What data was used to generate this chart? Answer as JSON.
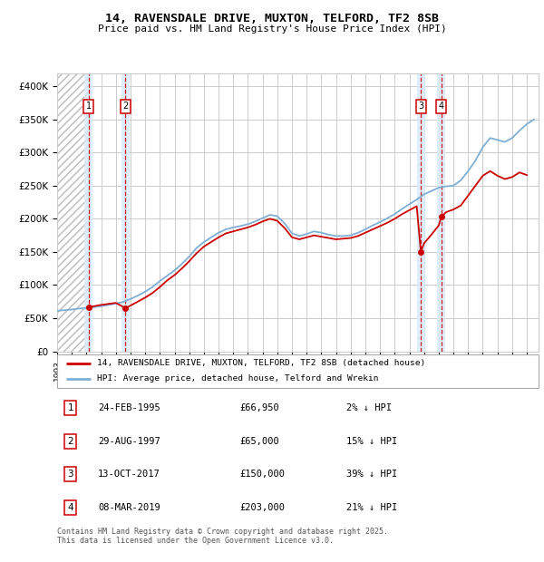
{
  "title": "14, RAVENSDALE DRIVE, MUXTON, TELFORD, TF2 8SB",
  "subtitle": "Price paid vs. HM Land Registry's House Price Index (HPI)",
  "ylabel_ticks": [
    "£0",
    "£50K",
    "£100K",
    "£150K",
    "£200K",
    "£250K",
    "£300K",
    "£350K",
    "£400K"
  ],
  "ytick_values": [
    0,
    50000,
    100000,
    150000,
    200000,
    250000,
    300000,
    350000,
    400000
  ],
  "ylim": [
    0,
    420000
  ],
  "xlim_start": 1993.0,
  "xlim_end": 2025.8,
  "sales": [
    {
      "num": 1,
      "date_num": 1995.15,
      "price": 66950,
      "label": "24-FEB-1995",
      "price_str": "£66,950",
      "hpi_diff": "2% ↓ HPI"
    },
    {
      "num": 2,
      "date_num": 1997.66,
      "price": 65000,
      "label": "29-AUG-1997",
      "price_str": "£65,000",
      "hpi_diff": "15% ↓ HPI"
    },
    {
      "num": 3,
      "date_num": 2017.78,
      "price": 150000,
      "label": "13-OCT-2017",
      "price_str": "£150,000",
      "hpi_diff": "39% ↓ HPI"
    },
    {
      "num": 4,
      "date_num": 2019.18,
      "price": 203000,
      "label": "08-MAR-2019",
      "price_str": "£203,000",
      "hpi_diff": "21% ↓ HPI"
    }
  ],
  "legend_line1": "14, RAVENSDALE DRIVE, MUXTON, TELFORD, TF2 8SB (detached house)",
  "legend_line2": "HPI: Average price, detached house, Telford and Wrekin",
  "footnote": "Contains HM Land Registry data © Crown copyright and database right 2025.\nThis data is licensed under the Open Government Licence v3.0.",
  "hpi_color": "#7fafd4",
  "price_color": "#cc0000",
  "bg_color": "#ffffff",
  "grid_color": "#cccccc",
  "hatch_color": "#bbbbbb",
  "shade_color": "#d8eaf8",
  "hpi_data": [
    [
      1993.0,
      61000
    ],
    [
      1993.5,
      62000
    ],
    [
      1994.0,
      63000
    ],
    [
      1994.5,
      64500
    ],
    [
      1995.0,
      65500
    ],
    [
      1995.5,
      66500
    ],
    [
      1996.0,
      68000
    ],
    [
      1996.5,
      70000
    ],
    [
      1997.0,
      72000
    ],
    [
      1997.5,
      74500
    ],
    [
      1998.0,
      79000
    ],
    [
      1998.5,
      84000
    ],
    [
      1999.0,
      90000
    ],
    [
      1999.5,
      97000
    ],
    [
      2000.0,
      106000
    ],
    [
      2000.5,
      114000
    ],
    [
      2001.0,
      122000
    ],
    [
      2001.5,
      132000
    ],
    [
      2002.0,
      143000
    ],
    [
      2002.5,
      156000
    ],
    [
      2003.0,
      165000
    ],
    [
      2003.5,
      172000
    ],
    [
      2004.0,
      179000
    ],
    [
      2004.5,
      184000
    ],
    [
      2005.0,
      187000
    ],
    [
      2005.5,
      189000
    ],
    [
      2006.0,
      192000
    ],
    [
      2006.5,
      196000
    ],
    [
      2007.0,
      201000
    ],
    [
      2007.5,
      206000
    ],
    [
      2008.0,
      204000
    ],
    [
      2008.5,
      193000
    ],
    [
      2009.0,
      178000
    ],
    [
      2009.5,
      174000
    ],
    [
      2010.0,
      177000
    ],
    [
      2010.5,
      181000
    ],
    [
      2011.0,
      179000
    ],
    [
      2011.5,
      176000
    ],
    [
      2012.0,
      174000
    ],
    [
      2012.5,
      174000
    ],
    [
      2013.0,
      175000
    ],
    [
      2013.5,
      179000
    ],
    [
      2014.0,
      184000
    ],
    [
      2014.5,
      190000
    ],
    [
      2015.0,
      195000
    ],
    [
      2015.5,
      201000
    ],
    [
      2016.0,
      207000
    ],
    [
      2016.5,
      215000
    ],
    [
      2017.0,
      222000
    ],
    [
      2017.5,
      229000
    ],
    [
      2018.0,
      237000
    ],
    [
      2018.5,
      242000
    ],
    [
      2019.0,
      247000
    ],
    [
      2019.5,
      249000
    ],
    [
      2020.0,
      250000
    ],
    [
      2020.5,
      258000
    ],
    [
      2021.0,
      272000
    ],
    [
      2021.5,
      288000
    ],
    [
      2022.0,
      308000
    ],
    [
      2022.5,
      322000
    ],
    [
      2023.0,
      319000
    ],
    [
      2023.5,
      316000
    ],
    [
      2024.0,
      322000
    ],
    [
      2024.5,
      333000
    ],
    [
      2025.0,
      343000
    ],
    [
      2025.5,
      350000
    ]
  ],
  "price_data": [
    [
      1995.15,
      66950
    ],
    [
      1995.5,
      68000
    ],
    [
      1996.0,
      70000
    ],
    [
      1996.5,
      71500
    ],
    [
      1997.0,
      73000
    ],
    [
      1997.66,
      65000
    ],
    [
      1998.0,
      69000
    ],
    [
      1998.5,
      75000
    ],
    [
      1999.0,
      81000
    ],
    [
      1999.5,
      88000
    ],
    [
      2000.0,
      97000
    ],
    [
      2000.5,
      107000
    ],
    [
      2001.0,
      115000
    ],
    [
      2001.5,
      125000
    ],
    [
      2002.0,
      136000
    ],
    [
      2002.5,
      148000
    ],
    [
      2003.0,
      158000
    ],
    [
      2003.5,
      165000
    ],
    [
      2004.0,
      172000
    ],
    [
      2004.5,
      178000
    ],
    [
      2005.0,
      181000
    ],
    [
      2005.5,
      184000
    ],
    [
      2006.0,
      187000
    ],
    [
      2006.5,
      191000
    ],
    [
      2007.0,
      196000
    ],
    [
      2007.5,
      200000
    ],
    [
      2008.0,
      197000
    ],
    [
      2008.5,
      186000
    ],
    [
      2009.0,
      172000
    ],
    [
      2009.5,
      169000
    ],
    [
      2010.0,
      172000
    ],
    [
      2010.5,
      175000
    ],
    [
      2011.0,
      173000
    ],
    [
      2011.5,
      171000
    ],
    [
      2012.0,
      169000
    ],
    [
      2012.5,
      170000
    ],
    [
      2013.0,
      171000
    ],
    [
      2013.5,
      174000
    ],
    [
      2014.0,
      179000
    ],
    [
      2014.5,
      184000
    ],
    [
      2015.0,
      189000
    ],
    [
      2015.5,
      194000
    ],
    [
      2016.0,
      200000
    ],
    [
      2016.5,
      207000
    ],
    [
      2017.0,
      213000
    ],
    [
      2017.5,
      219000
    ],
    [
      2017.78,
      150000
    ],
    [
      2018.0,
      163000
    ],
    [
      2018.5,
      176000
    ],
    [
      2019.0,
      190000
    ],
    [
      2019.18,
      203000
    ],
    [
      2019.5,
      210000
    ],
    [
      2020.0,
      214000
    ],
    [
      2020.5,
      220000
    ],
    [
      2021.0,
      235000
    ],
    [
      2021.5,
      250000
    ],
    [
      2022.0,
      265000
    ],
    [
      2022.5,
      272000
    ],
    [
      2023.0,
      265000
    ],
    [
      2023.5,
      260000
    ],
    [
      2024.0,
      263000
    ],
    [
      2024.5,
      270000
    ],
    [
      2025.0,
      266000
    ]
  ]
}
